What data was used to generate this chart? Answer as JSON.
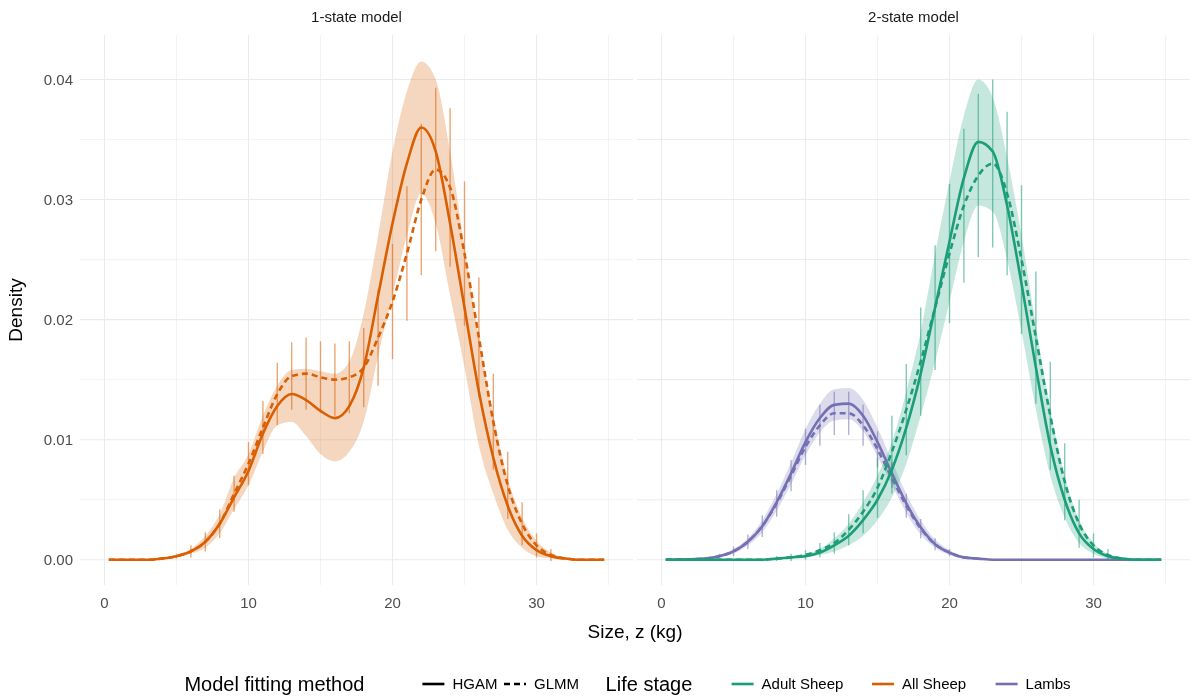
{
  "chart_data": [
    {
      "type": "line",
      "title": "1-state model",
      "xlabel": "Size, z (kg)",
      "ylabel": "Density",
      "grid": true,
      "xlim": [
        -1.7,
        36.7
      ],
      "xticks": [
        0,
        {
          "value": 5,
          "label": null
        },
        10,
        {
          "value": 15,
          "label": null
        },
        20,
        {
          "value": 25,
          "label": null
        },
        30,
        {
          "value": 35,
          "label": null
        }
      ],
      "ylim": [
        -0.0021,
        0.0437
      ],
      "yticks": [
        "0.00",
        {
          "value": 0.005,
          "label": null
        },
        {
          "value": 0.01,
          "label": "0.01"
        },
        {
          "value": 0.015,
          "label": null
        },
        {
          "value": 0.02,
          "label": "0.02"
        },
        {
          "value": 0.025,
          "label": null
        },
        {
          "value": 0.03,
          "label": "0.03"
        },
        {
          "value": 0.035,
          "label": null
        },
        {
          "value": 0.04,
          "label": "0.04"
        }
      ],
      "x": [
        0.3,
        3,
        4,
        5,
        6,
        7,
        8,
        9,
        10,
        11,
        12,
        13,
        14,
        15,
        16,
        17,
        18,
        19,
        20,
        21,
        22,
        23,
        24,
        25,
        26,
        27,
        28,
        29,
        30,
        31,
        32,
        33,
        34.7
      ],
      "series": [
        {
          "name": "All Sheep",
          "color": "#d95f02",
          "line_style": "solid",
          "values": [
            0,
            0,
            0.0001,
            0.0003,
            0.0007,
            0.0015,
            0.003,
            0.0052,
            0.0074,
            0.0105,
            0.0128,
            0.0138,
            0.0133,
            0.0124,
            0.0118,
            0.0128,
            0.016,
            0.022,
            0.028,
            0.033,
            0.036,
            0.034,
            0.028,
            0.021,
            0.014,
            0.0085,
            0.0045,
            0.002,
            0.0008,
            0.0003,
            0.0001,
            0,
            0
          ],
          "lower": [
            0,
            0,
            0.0001,
            0.0002,
            0.0005,
            0.001,
            0.0022,
            0.0042,
            0.0062,
            0.009,
            0.0112,
            0.0115,
            0.0103,
            0.0088,
            0.0082,
            0.009,
            0.0115,
            0.017,
            0.022,
            0.027,
            0.0305,
            0.028,
            0.022,
            0.016,
            0.0095,
            0.0055,
            0.0025,
            0.001,
            0.0003,
            0.0001,
            0,
            0,
            0
          ],
          "upper": [
            0,
            0,
            0.0001,
            0.0004,
            0.0009,
            0.002,
            0.0038,
            0.0068,
            0.0088,
            0.012,
            0.0145,
            0.0158,
            0.0159,
            0.0157,
            0.0155,
            0.0165,
            0.0205,
            0.027,
            0.034,
            0.039,
            0.0415,
            0.04,
            0.034,
            0.026,
            0.0185,
            0.012,
            0.0068,
            0.0035,
            0.0016,
            0.0006,
            0.0002,
            0,
            0
          ]
        },
        {
          "color": "#d95f02",
          "line_style": "dashed",
          "values": [
            0,
            0,
            0.0001,
            0.0003,
            0.0007,
            0.0015,
            0.003,
            0.0055,
            0.008,
            0.011,
            0.0138,
            0.0153,
            0.0155,
            0.0152,
            0.015,
            0.0152,
            0.016,
            0.0185,
            0.0215,
            0.0255,
            0.03,
            0.0325,
            0.031,
            0.0255,
            0.0185,
            0.0115,
            0.0062,
            0.003,
            0.0012,
            0.0004,
            0.0001,
            0,
            0
          ],
          "errors": [
            null,
            null,
            null,
            0.0002,
            0.0005,
            0.0008,
            0.0012,
            0.0015,
            0.0018,
            0.0022,
            0.0026,
            0.0028,
            0.003,
            0.003,
            0.003,
            0.003,
            0.0033,
            0.004,
            0.0048,
            0.0056,
            0.0063,
            0.0068,
            0.0066,
            0.006,
            0.005,
            0.004,
            0.0028,
            0.0018,
            0.001,
            0.0005,
            null,
            null,
            null
          ]
        }
      ]
    },
    {
      "type": "line",
      "title": "2-state model",
      "grid": true,
      "legend": "bottom",
      "legend_title": "Life stage",
      "annotations": [
        "Model fitting method",
        "HGAM",
        "GLMM"
      ],
      "tick_labels": "x",
      "xlim": [
        -1.7,
        36.7
      ],
      "xticks": [
        0,
        {
          "value": 5,
          "label": null
        },
        10,
        {
          "value": 15,
          "label": null
        },
        20,
        {
          "value": 25,
          "label": null
        },
        30,
        {
          "value": 35,
          "label": null
        }
      ],
      "ylim": [
        -0.0021,
        0.0437
      ],
      "yticks": [
        0,
        0.005,
        0.01,
        0.015,
        0.02,
        0.025,
        0.03,
        0.035,
        0.04
      ],
      "x": [
        0.3,
        3,
        4,
        5,
        6,
        7,
        8,
        9,
        10,
        11,
        12,
        13,
        14,
        15,
        16,
        17,
        18,
        19,
        20,
        21,
        22,
        23,
        24,
        25,
        26,
        27,
        28,
        29,
        30,
        31,
        32,
        33,
        34.7
      ],
      "series": [
        {
          "name": "Lambs",
          "color": "#7570b3",
          "line_style": "solid",
          "values": [
            0,
            0.0001,
            0.0003,
            0.0007,
            0.0015,
            0.0028,
            0.0048,
            0.0072,
            0.0098,
            0.0118,
            0.0129,
            0.013,
            0.012,
            0.0098,
            0.0072,
            0.0047,
            0.0027,
            0.0013,
            0.0006,
            0.0002,
            0.0001,
            0,
            0,
            0,
            0,
            0,
            0,
            0,
            0,
            0,
            0,
            0,
            0
          ],
          "lower": [
            0,
            0.0001,
            0.0002,
            0.0005,
            0.0012,
            0.0023,
            0.0041,
            0.0063,
            0.0087,
            0.0106,
            0.0116,
            0.0117,
            0.0107,
            0.0086,
            0.0062,
            0.0039,
            0.0021,
            0.001,
            0.0004,
            0.0001,
            0,
            0,
            0,
            0,
            0,
            0,
            0,
            0,
            0,
            0,
            0,
            0,
            0
          ],
          "upper": [
            0,
            0.0002,
            0.0004,
            0.0009,
            0.0018,
            0.0033,
            0.0055,
            0.0081,
            0.0109,
            0.013,
            0.0142,
            0.0143,
            0.0133,
            0.011,
            0.0082,
            0.0055,
            0.0033,
            0.0017,
            0.0008,
            0.0003,
            0.0001,
            0,
            0,
            0,
            0,
            0,
            0,
            0,
            0,
            0,
            0,
            0,
            0
          ]
        },
        {
          "color": "#7570b3",
          "line_style": "dashed",
          "values": [
            0,
            0.0001,
            0.0003,
            0.0007,
            0.0015,
            0.0028,
            0.0047,
            0.007,
            0.0094,
            0.0112,
            0.0122,
            0.0122,
            0.0112,
            0.0092,
            0.0068,
            0.0045,
            0.0026,
            0.0013,
            0.0006,
            0.0002,
            0.0001,
            null,
            null,
            null,
            null,
            null,
            null,
            null,
            null,
            null,
            null,
            null,
            null
          ],
          "errors": [
            null,
            null,
            0.0002,
            0.0004,
            0.0006,
            0.0009,
            0.0011,
            0.0013,
            0.0015,
            0.0017,
            0.0018,
            0.0018,
            0.0017,
            0.0015,
            0.0013,
            0.001,
            0.0008,
            0.0005,
            0.0003,
            null,
            null,
            null,
            null,
            null,
            null,
            null,
            null,
            null,
            null,
            null,
            null,
            null,
            null
          ]
        },
        {
          "name": "Adult Sheep",
          "color": "#1b9e77",
          "line_style": "solid",
          "values": [
            0,
            0,
            0,
            0,
            0,
            0,
            0.0001,
            0.0002,
            0.0003,
            0.0006,
            0.0012,
            0.002,
            0.0033,
            0.005,
            0.0075,
            0.011,
            0.0155,
            0.021,
            0.0265,
            0.0318,
            0.0348,
            0.034,
            0.0295,
            0.023,
            0.016,
            0.0095,
            0.005,
            0.0022,
            0.0009,
            0.0003,
            0.0001,
            0,
            0
          ],
          "lower": [
            0,
            0,
            0,
            0,
            0,
            0,
            0.0001,
            0.0001,
            0.0002,
            0.0004,
            0.0007,
            0.0012,
            0.002,
            0.0033,
            0.0052,
            0.008,
            0.012,
            0.0165,
            0.0215,
            0.0265,
            0.0295,
            0.029,
            0.025,
            0.019,
            0.0125,
            0.007,
            0.0035,
            0.0014,
            0.0005,
            0.0001,
            0,
            0,
            0
          ],
          "upper": [
            0,
            0,
            0,
            0,
            0,
            0,
            0.0001,
            0.0003,
            0.0005,
            0.0009,
            0.0018,
            0.003,
            0.0048,
            0.007,
            0.0098,
            0.014,
            0.019,
            0.0255,
            0.0315,
            0.037,
            0.04,
            0.0385,
            0.0335,
            0.027,
            0.0195,
            0.0125,
            0.007,
            0.0033,
            0.0014,
            0.0005,
            0.0002,
            0,
            0
          ]
        },
        {
          "color": "#1b9e77",
          "line_style": "dashed",
          "values": [
            0,
            0,
            0,
            0,
            0,
            0,
            0.0001,
            0.0002,
            0.0004,
            0.0008,
            0.0014,
            0.0025,
            0.004,
            0.006,
            0.009,
            0.0125,
            0.0165,
            0.021,
            0.0255,
            0.0295,
            0.032,
            0.033,
            0.0305,
            0.025,
            0.0185,
            0.012,
            0.0065,
            0.003,
            0.0012,
            0.0004,
            0.0001,
            0,
            0
          ],
          "errors": [
            null,
            null,
            null,
            null,
            null,
            null,
            0.0002,
            0.0003,
            0.0004,
            0.0006,
            0.0009,
            0.0013,
            0.0018,
            0.0025,
            0.003,
            0.0038,
            0.0045,
            0.0052,
            0.0058,
            0.0064,
            0.0068,
            0.007,
            0.0068,
            0.0062,
            0.0055,
            0.0045,
            0.0032,
            0.002,
            0.001,
            0.0005,
            null,
            null,
            null
          ]
        }
      ]
    }
  ]
}
